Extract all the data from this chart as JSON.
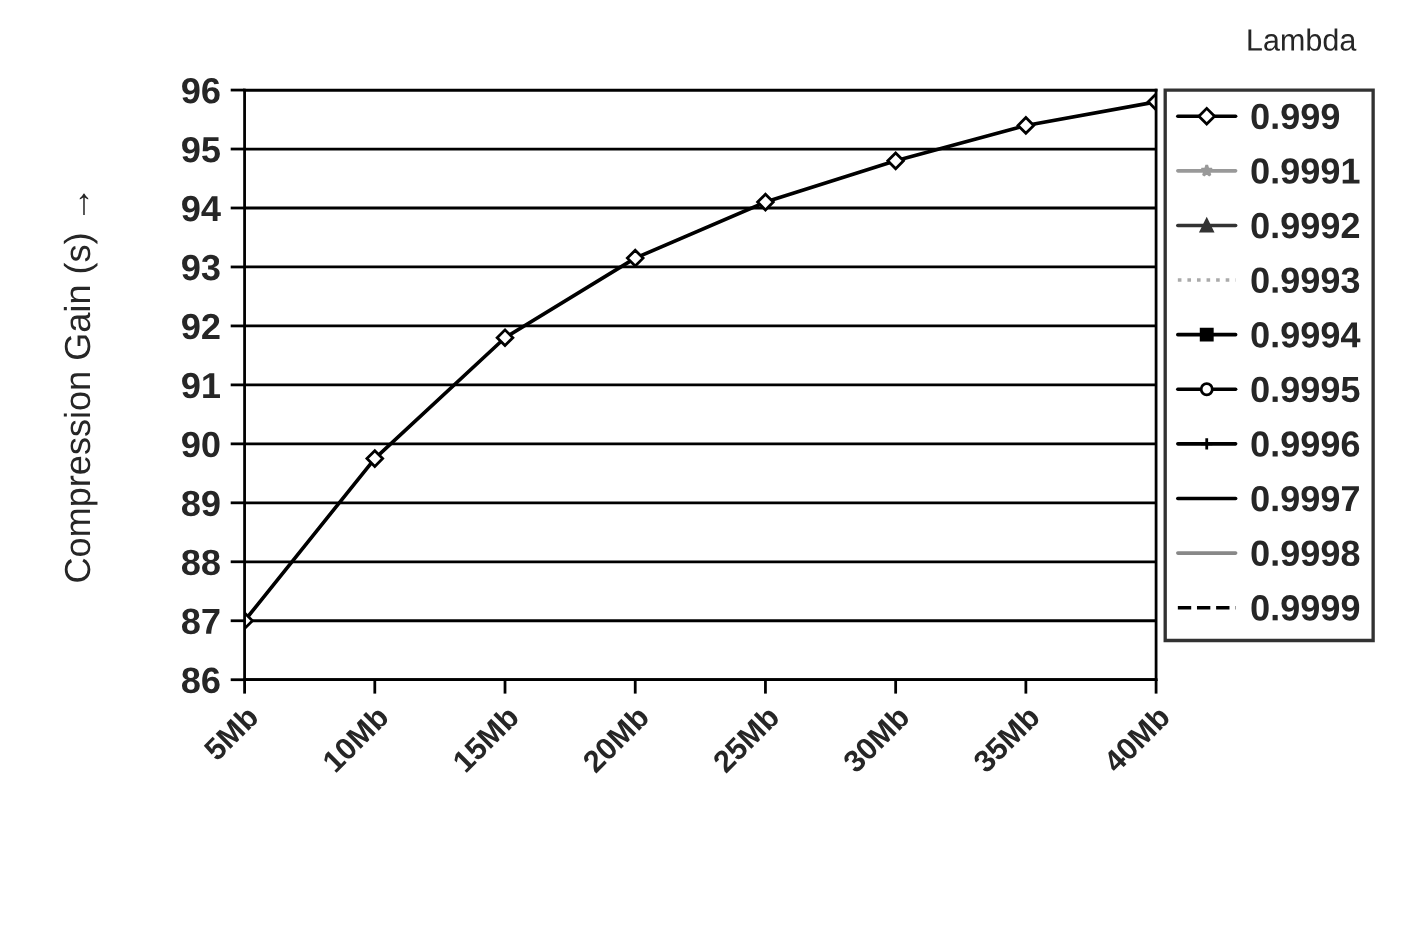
{
  "chart_data": {
    "type": "line",
    "ylabel": "Compression Gain (s) →",
    "legend_title": "Lambda",
    "categories": [
      "5Mb",
      "10Mb",
      "15Mb",
      "20Mb",
      "25Mb",
      "30Mb",
      "35Mb",
      "40Mb"
    ],
    "series": [
      {
        "name": "0.999",
        "color": "#000000",
        "marker": "diamond",
        "values": [
          87.0,
          89.75,
          91.8,
          93.15,
          94.1,
          94.8,
          95.4,
          95.8
        ]
      },
      {
        "name": "0.9991",
        "color": "#999999",
        "marker": "star",
        "values": [
          null,
          null,
          null,
          null,
          null,
          null,
          null,
          null
        ]
      },
      {
        "name": "0.9992",
        "color": "#333333",
        "marker": "triangle",
        "values": [
          null,
          null,
          null,
          null,
          null,
          null,
          null,
          null
        ]
      },
      {
        "name": "0.9993",
        "color": "#aaaaaa",
        "marker": "none",
        "line_style": "dotted",
        "values": [
          null,
          null,
          null,
          null,
          null,
          null,
          null,
          null
        ]
      },
      {
        "name": "0.9994",
        "color": "#000000",
        "marker": "square",
        "values": [
          null,
          null,
          null,
          null,
          null,
          null,
          null,
          null
        ]
      },
      {
        "name": "0.9995",
        "color": "#000000",
        "marker": "circle",
        "values": [
          null,
          null,
          null,
          null,
          null,
          null,
          null,
          null
        ]
      },
      {
        "name": "0.9996",
        "color": "#000000",
        "marker": "cross",
        "values": [
          null,
          null,
          null,
          null,
          null,
          null,
          null,
          null
        ]
      },
      {
        "name": "0.9997",
        "color": "#000000",
        "marker": "none",
        "values": [
          null,
          null,
          null,
          null,
          null,
          null,
          null,
          null
        ]
      },
      {
        "name": "0.9998",
        "color": "#888888",
        "marker": "none",
        "values": [
          null,
          null,
          null,
          null,
          null,
          null,
          null,
          null
        ]
      },
      {
        "name": "0.9999",
        "color": "#000000",
        "marker": "none",
        "line_style": "dashed",
        "values": [
          null,
          null,
          null,
          null,
          null,
          null,
          null,
          null
        ]
      }
    ],
    "ylim": [
      86,
      96
    ],
    "yticks": [
      86,
      87,
      88,
      89,
      90,
      91,
      92,
      93,
      94,
      95,
      96
    ],
    "grid": "y",
    "legend": "right"
  }
}
